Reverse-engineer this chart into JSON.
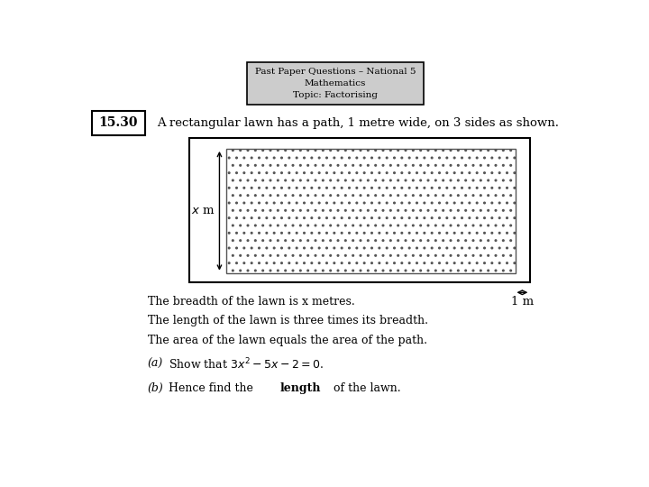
{
  "title_lines": [
    "Past Paper Questions – National 5",
    "Mathematics",
    "Topic: Factorising"
  ],
  "question_number": "15.30",
  "intro_text": "A rectangular lawn has a path, 1 metre wide, on 3 sides as shown.",
  "bullet1": "The breadth of the lawn is x metres.",
  "bullet2": "The length of the lawn is three times its breadth.",
  "bullet3": "The area of the lawn equals the area of the path.",
  "bg_color": "#ffffff",
  "header_bg": "#cccccc"
}
